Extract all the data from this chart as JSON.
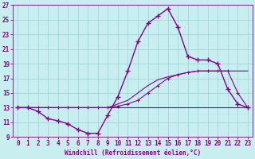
{
  "title": "",
  "xlabel": "Windchill (Refroidissement éolien,°C)",
  "background_color": "#c8eef0",
  "grid_color": "#a0d8d8",
  "line_color": "#880088",
  "xlim": [
    -0.5,
    23.5
  ],
  "ylim": [
    9,
    27
  ],
  "xticks": [
    0,
    1,
    2,
    3,
    4,
    5,
    6,
    7,
    8,
    9,
    10,
    11,
    12,
    13,
    14,
    15,
    16,
    17,
    18,
    19,
    20,
    21,
    22,
    23
  ],
  "yticks": [
    9,
    11,
    13,
    15,
    17,
    19,
    21,
    23,
    25,
    27
  ],
  "series": [
    {
      "x": [
        0,
        1,
        2,
        3,
        4,
        5,
        6,
        7,
        8,
        9,
        10,
        11,
        12,
        13,
        14,
        15,
        16,
        17,
        18,
        19,
        20,
        21,
        22,
        23
      ],
      "y": [
        13,
        13,
        12.5,
        11.5,
        11.2,
        10.8,
        10,
        9.5,
        9.5,
        12,
        14.5,
        18,
        22,
        24.5,
        25.5,
        26.5,
        24,
        20,
        19.5,
        19.5,
        19,
        15.5,
        13.5,
        13
      ],
      "marker": true
    },
    {
      "x": [
        0,
        1,
        2,
        3,
        4,
        5,
        6,
        7,
        8,
        9,
        10,
        11,
        12,
        13,
        14,
        15,
        16,
        17,
        18,
        19,
        20,
        21,
        22,
        23
      ],
      "y": [
        13,
        13,
        13,
        13,
        13,
        13,
        13,
        13,
        13,
        13,
        13.5,
        14,
        15,
        16,
        16.8,
        17.2,
        17.5,
        17.8,
        18,
        18,
        18,
        18,
        18,
        18
      ],
      "marker": false
    },
    {
      "x": [
        0,
        23
      ],
      "y": [
        13,
        13
      ],
      "marker": false
    },
    {
      "x": [
        0,
        1,
        2,
        3,
        4,
        5,
        6,
        7,
        8,
        9,
        10,
        11,
        12,
        13,
        14,
        15,
        16,
        17,
        18,
        19,
        20,
        21,
        22,
        23
      ],
      "y": [
        13,
        13,
        13,
        13,
        13,
        13,
        13,
        13,
        13,
        13,
        13.2,
        13.5,
        14,
        15,
        16,
        17,
        17.5,
        17.8,
        18,
        18,
        18,
        18,
        15,
        13
      ],
      "marker": true
    }
  ]
}
